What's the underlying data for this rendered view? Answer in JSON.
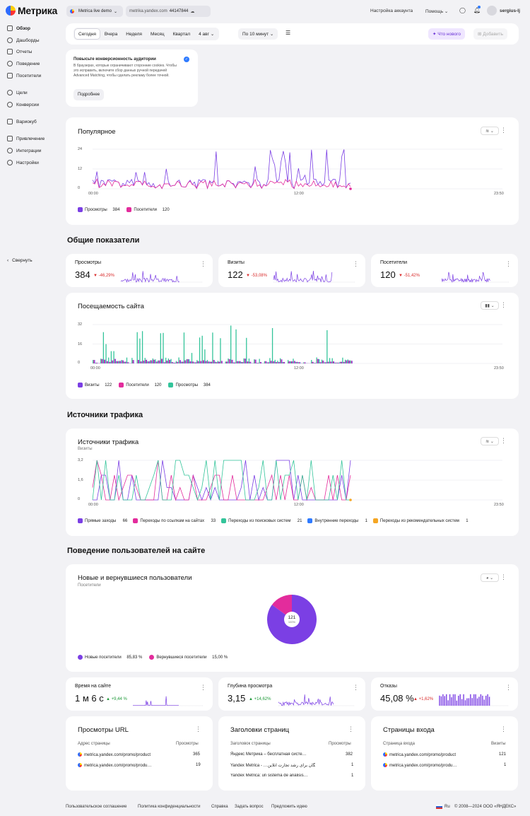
{
  "header": {
    "logo": "Метрика",
    "counter_name": "Metrica live demo",
    "domain": "metrika.yandex.com",
    "counter_id": "44147844",
    "account_settings": "Настройка аккаунта",
    "help": "Помощь",
    "user": "sergius-lj"
  },
  "sidebar": {
    "items": [
      "Обзор",
      "Дашборды",
      "Отчеты",
      "Поведение",
      "Посетители",
      "Цели",
      "Конверсии",
      "Вариокуб",
      "Привлечение",
      "Интеграции",
      "Настройки"
    ],
    "collapse": "Свернуть"
  },
  "toolbar": {
    "periods": [
      "Сегодня",
      "Вчера",
      "Неделя",
      "Месяц",
      "Квартал"
    ],
    "date": "4 авг",
    "interval": "По 10 минут",
    "whats_new": "Что нового",
    "add": "Добавить"
  },
  "banner": {
    "title": "Повысьте конверсионность аудитории",
    "text": "В браузерах, которые ограничивают сторонние cookies. Чтобы это исправить, включите сбор данных ручной передачей Advanced Matching, чтобы сделать рекламу более точной.",
    "button": "Подробнее"
  },
  "popular": {
    "title": "Популярное",
    "y_ticks": [
      "24",
      "12",
      "0"
    ],
    "x_ticks": [
      "00:00",
      "12:00",
      "23:50"
    ],
    "legend": [
      {
        "label": "Просмотры",
        "value": "384",
        "color": "#7b3fe4"
      },
      {
        "label": "Посетители",
        "value": "120",
        "color": "#e32c9c"
      }
    ]
  },
  "general": {
    "title": "Общие показатели",
    "metrics": [
      {
        "label": "Просмотры",
        "value": "384",
        "delta": "-46,29%"
      },
      {
        "label": "Визиты",
        "value": "122",
        "delta": "-53,08%"
      },
      {
        "label": "Посетители",
        "value": "120",
        "delta": "-51,42%"
      }
    ]
  },
  "attendance": {
    "title": "Посещаемость сайта",
    "y_ticks": [
      "32",
      "16",
      "0"
    ],
    "x_ticks": [
      "00:00",
      "12:00",
      "23:50"
    ],
    "legend": [
      {
        "label": "Визиты",
        "value": "122",
        "color": "#7b3fe4"
      },
      {
        "label": "Посетители",
        "value": "120",
        "color": "#e32c9c"
      },
      {
        "label": "Просмотры",
        "value": "384",
        "color": "#33c49a"
      }
    ]
  },
  "traffic_section": {
    "title": "Источники трафика"
  },
  "traffic": {
    "title": "Источники трафика",
    "subtitle": "Визиты",
    "y_ticks": [
      "3,2",
      "1,6",
      "0"
    ],
    "x_ticks": [
      "00:00",
      "12:00",
      "23:50"
    ],
    "legend": [
      {
        "label": "Прямые заходы",
        "value": "66",
        "color": "#7b3fe4"
      },
      {
        "label": "Переходы по ссылкам на сайтах",
        "value": "33",
        "color": "#e32c9c"
      },
      {
        "label": "Переходы из поисковых систем",
        "value": "21",
        "color": "#33c49a"
      },
      {
        "label": "Внутренние переходы",
        "value": "1",
        "color": "#2f7bff"
      },
      {
        "label": "Переходы из рекомендательных систем",
        "value": "1",
        "color": "#f5a623"
      }
    ]
  },
  "behavior_section": {
    "title": "Поведение пользователей на сайте"
  },
  "new_returning": {
    "title": "Новые и вернувшиеся пользователи",
    "subtitle": "Посетители",
    "center_value": "121",
    "center_pct": "100%",
    "legend": [
      {
        "label": "Новые посетители",
        "value": "85,83 %",
        "color": "#7b3fe4"
      },
      {
        "label": "Вернувшиеся посетители",
        "value": "15,00 %",
        "color": "#e32c9c"
      }
    ]
  },
  "chart_data": [
    {
      "type": "pie",
      "title": "Новые и вернувшиеся пользователи",
      "categories": [
        "Новые посетители",
        "Вернувшиеся посетители"
      ],
      "values": [
        85.83,
        15.0
      ]
    }
  ],
  "behavior_metrics": [
    {
      "label": "Время на сайте",
      "value": "1 м 6 с",
      "delta": "+9,44 %"
    },
    {
      "label": "Глубина просмотра",
      "value": "3,15",
      "delta": "+14,62%"
    },
    {
      "label": "Отказы",
      "value": "45,08 %",
      "delta": "+1,62%"
    }
  ],
  "tables": {
    "urls": {
      "title": "Просмотры URL",
      "col1": "Адрес страницы",
      "col2": "Просмотры",
      "rows": [
        [
          "metrica.yandex.com/promo/product",
          "365"
        ],
        [
          "metrica.yandex.com/promo/produ…",
          "19"
        ]
      ]
    },
    "titles": {
      "title": "Заголовки страниц",
      "col1": "Заголовок страницы",
      "col2": "Просмотры",
      "rows": [
        [
          "Яндекс Метрика – бесплатная систе…",
          "382"
        ],
        [
          "Yandex Metrica - …بیگان برای رشد تجارت آنلاین",
          "1"
        ],
        [
          "Yandex Metrica: un sistema de análisis…",
          "1"
        ]
      ]
    },
    "entry": {
      "title": "Страницы входа",
      "col1": "Страница входа",
      "col2": "Визиты",
      "rows": [
        [
          "metrica.yandex.com/promo/product",
          "121"
        ],
        [
          "metrica.yandex.com/promo/produ…",
          "1"
        ]
      ]
    }
  },
  "footer": {
    "links": [
      "Пользовательское соглашение",
      "Политика конфиденциальности",
      "Справка",
      "Задать вопрос",
      "Предложить идею"
    ],
    "lang": "Ru",
    "copyright": "© 2008—2024 ООО «ЯНДЕКС»"
  }
}
